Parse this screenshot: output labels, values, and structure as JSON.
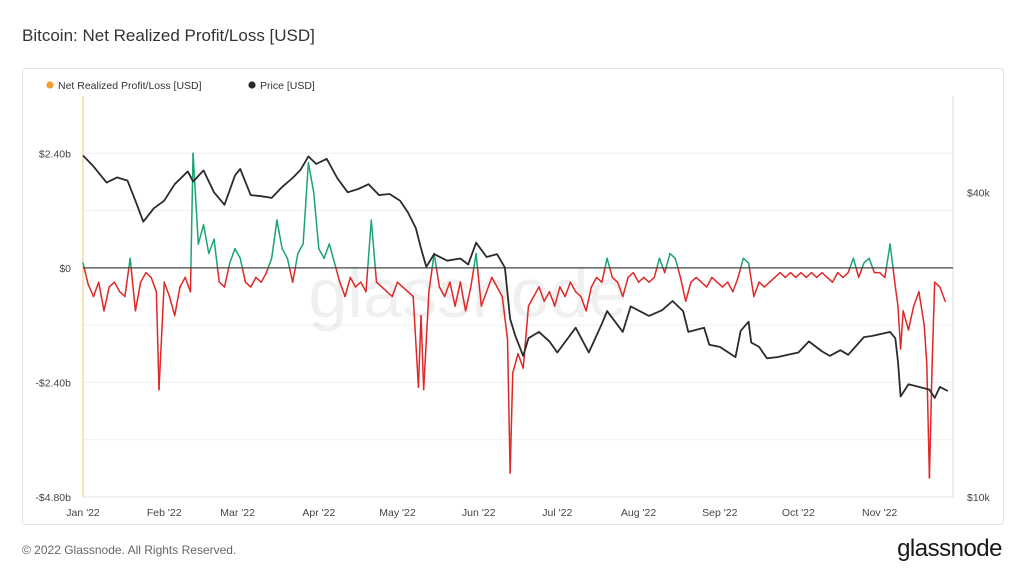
{
  "header": {
    "title": "Bitcoin: Net Realized Profit/Loss [USD]"
  },
  "footer": {
    "copyright": "© 2022 Glassnode. All Rights Reserved.",
    "logo_text": "glassnode"
  },
  "watermark": "glassnode",
  "colors": {
    "profit": "#1aa56f",
    "loss": "#e02727",
    "price": "#2b2b2b",
    "legend_profit_loss": "#f59c32",
    "legend_price": "#2b2b2b",
    "left_axis_line": "#f5c96b",
    "zero_line": "#444444",
    "grid": "#efefef"
  },
  "chart_data": {
    "type": "line",
    "title": "Bitcoin: Net Realized Profit/Loss [USD]",
    "legend": {
      "placement": "top-left",
      "items": [
        {
          "label": "Net Realized Profit/Loss [USD]",
          "color": "#f59c32"
        },
        {
          "label": "Price [USD]",
          "color": "#2b2b2b"
        }
      ]
    },
    "x_axis": {
      "ticks": [
        "Jan '22",
        "Feb '22",
        "Mar '22",
        "Apr '22",
        "May '22",
        "Jun '22",
        "Jul '22",
        "Aug '22",
        "Sep '22",
        "Oct '22",
        "Nov '22"
      ]
    },
    "y_left": {
      "ticks": [
        {
          "label": "$2.40b",
          "value": 2.4
        },
        {
          "label": "$0",
          "value": 0
        },
        {
          "label": "-$2.40b",
          "value": -2.4
        },
        {
          "label": "-$4.80b",
          "value": -4.8
        }
      ],
      "range": [
        -4.8,
        3.6
      ]
    },
    "y_right": {
      "scale": "log",
      "ticks": [
        {
          "label": "$40k",
          "value": 40000
        },
        {
          "label": "$10k",
          "value": 10000
        }
      ],
      "range": [
        10000,
        62000
      ]
    },
    "grid": true,
    "price_series": {
      "name": "Price [USD]",
      "points": [
        [
          "2022-01-01",
          47300
        ],
        [
          "2022-01-05",
          45000
        ],
        [
          "2022-01-10",
          41800
        ],
        [
          "2022-01-14",
          42800
        ],
        [
          "2022-01-18",
          42200
        ],
        [
          "2022-01-21",
          38500
        ],
        [
          "2022-01-24",
          35000
        ],
        [
          "2022-01-28",
          37200
        ],
        [
          "2022-02-01",
          38500
        ],
        [
          "2022-02-05",
          41500
        ],
        [
          "2022-02-10",
          44000
        ],
        [
          "2022-02-12",
          42000
        ],
        [
          "2022-02-16",
          44200
        ],
        [
          "2022-02-20",
          40000
        ],
        [
          "2022-02-24",
          37800
        ],
        [
          "2022-02-28",
          43200
        ],
        [
          "2022-03-02",
          44500
        ],
        [
          "2022-03-06",
          39500
        ],
        [
          "2022-03-10",
          39300
        ],
        [
          "2022-03-14",
          39000
        ],
        [
          "2022-03-18",
          41000
        ],
        [
          "2022-03-22",
          42700
        ],
        [
          "2022-03-25",
          44300
        ],
        [
          "2022-03-28",
          47100
        ],
        [
          "2022-03-31",
          45500
        ],
        [
          "2022-04-04",
          46600
        ],
        [
          "2022-04-08",
          42700
        ],
        [
          "2022-04-12",
          40000
        ],
        [
          "2022-04-16",
          40600
        ],
        [
          "2022-04-20",
          41500
        ],
        [
          "2022-04-24",
          39500
        ],
        [
          "2022-04-28",
          39700
        ],
        [
          "2022-05-02",
          38500
        ],
        [
          "2022-05-05",
          36500
        ],
        [
          "2022-05-08",
          34000
        ],
        [
          "2022-05-10",
          31000
        ],
        [
          "2022-05-12",
          28500
        ],
        [
          "2022-05-15",
          30200
        ],
        [
          "2022-05-20",
          29300
        ],
        [
          "2022-05-25",
          29600
        ],
        [
          "2022-05-28",
          28800
        ],
        [
          "2022-05-31",
          31800
        ],
        [
          "2022-06-04",
          29800
        ],
        [
          "2022-06-08",
          30200
        ],
        [
          "2022-06-11",
          28400
        ],
        [
          "2022-06-13",
          22500
        ],
        [
          "2022-06-15",
          20800
        ],
        [
          "2022-06-18",
          19000
        ],
        [
          "2022-06-20",
          20600
        ],
        [
          "2022-06-24",
          21200
        ],
        [
          "2022-06-28",
          20300
        ],
        [
          "2022-07-01",
          19300
        ],
        [
          "2022-07-08",
          21600
        ],
        [
          "2022-07-13",
          19300
        ],
        [
          "2022-07-18",
          22000
        ],
        [
          "2022-07-20",
          23300
        ],
        [
          "2022-07-26",
          21200
        ],
        [
          "2022-07-29",
          23800
        ],
        [
          "2022-08-05",
          22800
        ],
        [
          "2022-08-10",
          23400
        ],
        [
          "2022-08-14",
          24400
        ],
        [
          "2022-08-18",
          23300
        ],
        [
          "2022-08-20",
          21200
        ],
        [
          "2022-08-26",
          21600
        ],
        [
          "2022-08-28",
          20000
        ],
        [
          "2022-09-01",
          19800
        ],
        [
          "2022-09-07",
          18900
        ],
        [
          "2022-09-09",
          21300
        ],
        [
          "2022-09-12",
          22200
        ],
        [
          "2022-09-13",
          20200
        ],
        [
          "2022-09-16",
          19800
        ],
        [
          "2022-09-19",
          18800
        ],
        [
          "2022-09-23",
          18900
        ],
        [
          "2022-09-27",
          19100
        ],
        [
          "2022-10-01",
          19300
        ],
        [
          "2022-10-05",
          20300
        ],
        [
          "2022-10-10",
          19400
        ],
        [
          "2022-10-13",
          19000
        ],
        [
          "2022-10-17",
          19500
        ],
        [
          "2022-10-20",
          19100
        ],
        [
          "2022-10-26",
          20700
        ],
        [
          "2022-10-29",
          20800
        ],
        [
          "2022-11-05",
          21200
        ],
        [
          "2022-11-07",
          20600
        ],
        [
          "2022-11-08",
          18500
        ],
        [
          "2022-11-09",
          15800
        ],
        [
          "2022-11-12",
          16700
        ],
        [
          "2022-11-16",
          16500
        ],
        [
          "2022-11-20",
          16300
        ],
        [
          "2022-11-22",
          15700
        ],
        [
          "2022-11-24",
          16500
        ],
        [
          "2022-11-27",
          16200
        ]
      ]
    },
    "npl_series": {
      "name": "Net Realized Profit/Loss [USD]",
      "unit": "billion USD",
      "points": [
        [
          "2022-01-01",
          0.1
        ],
        [
          "2022-01-03",
          -0.35
        ],
        [
          "2022-01-05",
          -0.6
        ],
        [
          "2022-01-07",
          -0.3
        ],
        [
          "2022-01-09",
          -0.9
        ],
        [
          "2022-01-11",
          -0.4
        ],
        [
          "2022-01-13",
          -0.3
        ],
        [
          "2022-01-15",
          -0.5
        ],
        [
          "2022-01-17",
          -0.6
        ],
        [
          "2022-01-19",
          0.2
        ],
        [
          "2022-01-21",
          -0.9
        ],
        [
          "2022-01-23",
          -0.3
        ],
        [
          "2022-01-25",
          -0.1
        ],
        [
          "2022-01-27",
          -0.2
        ],
        [
          "2022-01-29",
          -0.5
        ],
        [
          "2022-01-30",
          -2.55
        ],
        [
          "2022-02-01",
          -0.3
        ],
        [
          "2022-02-03",
          -0.6
        ],
        [
          "2022-02-05",
          -1.0
        ],
        [
          "2022-02-07",
          -0.4
        ],
        [
          "2022-02-09",
          -0.2
        ],
        [
          "2022-02-11",
          -0.5
        ],
        [
          "2022-02-12",
          2.4
        ],
        [
          "2022-02-14",
          0.5
        ],
        [
          "2022-02-16",
          0.9
        ],
        [
          "2022-02-18",
          0.3
        ],
        [
          "2022-02-20",
          0.6
        ],
        [
          "2022-02-22",
          -0.3
        ],
        [
          "2022-02-24",
          -0.4
        ],
        [
          "2022-02-26",
          0.1
        ],
        [
          "2022-02-28",
          0.4
        ],
        [
          "2022-03-02",
          0.2
        ],
        [
          "2022-03-04",
          -0.3
        ],
        [
          "2022-03-06",
          -0.4
        ],
        [
          "2022-03-08",
          -0.2
        ],
        [
          "2022-03-10",
          -0.3
        ],
        [
          "2022-03-12",
          -0.1
        ],
        [
          "2022-03-14",
          0.2
        ],
        [
          "2022-03-16",
          1.0
        ],
        [
          "2022-03-18",
          0.4
        ],
        [
          "2022-03-20",
          0.2
        ],
        [
          "2022-03-22",
          -0.3
        ],
        [
          "2022-03-24",
          0.3
        ],
        [
          "2022-03-26",
          0.5
        ],
        [
          "2022-03-28",
          2.2
        ],
        [
          "2022-03-30",
          1.6
        ],
        [
          "2022-04-01",
          0.4
        ],
        [
          "2022-04-03",
          0.2
        ],
        [
          "2022-04-05",
          0.5
        ],
        [
          "2022-04-07",
          0.1
        ],
        [
          "2022-04-09",
          -0.3
        ],
        [
          "2022-04-11",
          -0.6
        ],
        [
          "2022-04-13",
          -0.2
        ],
        [
          "2022-04-15",
          -0.4
        ],
        [
          "2022-04-17",
          -0.3
        ],
        [
          "2022-04-19",
          -0.5
        ],
        [
          "2022-04-21",
          1.0
        ],
        [
          "2022-04-23",
          -0.3
        ],
        [
          "2022-04-25",
          -0.4
        ],
        [
          "2022-04-27",
          -0.5
        ],
        [
          "2022-04-29",
          -0.6
        ],
        [
          "2022-05-01",
          -0.3
        ],
        [
          "2022-05-03",
          -0.4
        ],
        [
          "2022-05-05",
          -0.5
        ],
        [
          "2022-05-07",
          -0.6
        ],
        [
          "2022-05-09",
          -2.5
        ],
        [
          "2022-05-10",
          -1.0
        ],
        [
          "2022-05-11",
          -2.55
        ],
        [
          "2022-05-13",
          -0.5
        ],
        [
          "2022-05-15",
          0.3
        ],
        [
          "2022-05-17",
          -0.4
        ],
        [
          "2022-05-19",
          -0.6
        ],
        [
          "2022-05-21",
          -0.3
        ],
        [
          "2022-05-23",
          -0.8
        ],
        [
          "2022-05-25",
          -0.3
        ],
        [
          "2022-05-27",
          -0.9
        ],
        [
          "2022-05-29",
          -0.4
        ],
        [
          "2022-05-31",
          0.3
        ],
        [
          "2022-06-02",
          -0.8
        ],
        [
          "2022-06-04",
          -0.5
        ],
        [
          "2022-06-06",
          -0.2
        ],
        [
          "2022-06-08",
          -0.4
        ],
        [
          "2022-06-10",
          -0.6
        ],
        [
          "2022-06-12",
          -1.5
        ],
        [
          "2022-06-13",
          -4.3
        ],
        [
          "2022-06-14",
          -2.2
        ],
        [
          "2022-06-16",
          -1.8
        ],
        [
          "2022-06-18",
          -2.1
        ],
        [
          "2022-06-20",
          -0.8
        ],
        [
          "2022-06-22",
          -0.6
        ],
        [
          "2022-06-24",
          -0.4
        ],
        [
          "2022-06-26",
          -0.7
        ],
        [
          "2022-06-28",
          -0.5
        ],
        [
          "2022-06-30",
          -0.8
        ],
        [
          "2022-07-02",
          -0.4
        ],
        [
          "2022-07-04",
          -0.6
        ],
        [
          "2022-07-06",
          -0.3
        ],
        [
          "2022-07-08",
          -0.5
        ],
        [
          "2022-07-10",
          -0.6
        ],
        [
          "2022-07-12",
          -0.9
        ],
        [
          "2022-07-14",
          -0.4
        ],
        [
          "2022-07-16",
          -0.2
        ],
        [
          "2022-07-18",
          -0.3
        ],
        [
          "2022-07-20",
          0.2
        ],
        [
          "2022-07-22",
          -0.2
        ],
        [
          "2022-07-24",
          -0.3
        ],
        [
          "2022-07-26",
          -0.6
        ],
        [
          "2022-07-28",
          -0.2
        ],
        [
          "2022-07-30",
          -0.1
        ],
        [
          "2022-08-01",
          -0.3
        ],
        [
          "2022-08-03",
          -0.2
        ],
        [
          "2022-08-05",
          -0.3
        ],
        [
          "2022-08-07",
          -0.2
        ],
        [
          "2022-08-09",
          0.2
        ],
        [
          "2022-08-11",
          -0.1
        ],
        [
          "2022-08-13",
          0.3
        ],
        [
          "2022-08-15",
          0.2
        ],
        [
          "2022-08-17",
          -0.2
        ],
        [
          "2022-08-19",
          -0.7
        ],
        [
          "2022-08-21",
          -0.3
        ],
        [
          "2022-08-23",
          -0.2
        ],
        [
          "2022-08-25",
          -0.3
        ],
        [
          "2022-08-27",
          -0.4
        ],
        [
          "2022-08-29",
          -0.2
        ],
        [
          "2022-08-31",
          -0.3
        ],
        [
          "2022-09-02",
          -0.4
        ],
        [
          "2022-09-04",
          -0.3
        ],
        [
          "2022-09-06",
          -0.5
        ],
        [
          "2022-09-08",
          -0.2
        ],
        [
          "2022-09-10",
          0.2
        ],
        [
          "2022-09-12",
          0.1
        ],
        [
          "2022-09-14",
          -0.6
        ],
        [
          "2022-09-16",
          -0.3
        ],
        [
          "2022-09-18",
          -0.4
        ],
        [
          "2022-09-20",
          -0.3
        ],
        [
          "2022-09-22",
          -0.2
        ],
        [
          "2022-09-24",
          -0.1
        ],
        [
          "2022-09-26",
          -0.2
        ],
        [
          "2022-09-28",
          -0.1
        ],
        [
          "2022-09-30",
          -0.2
        ],
        [
          "2022-10-02",
          -0.1
        ],
        [
          "2022-10-04",
          -0.2
        ],
        [
          "2022-10-06",
          -0.1
        ],
        [
          "2022-10-08",
          -0.2
        ],
        [
          "2022-10-10",
          -0.1
        ],
        [
          "2022-10-12",
          -0.2
        ],
        [
          "2022-10-14",
          -0.3
        ],
        [
          "2022-10-16",
          -0.1
        ],
        [
          "2022-10-18",
          -0.2
        ],
        [
          "2022-10-20",
          -0.1
        ],
        [
          "2022-10-22",
          0.2
        ],
        [
          "2022-10-24",
          -0.2
        ],
        [
          "2022-10-26",
          0.1
        ],
        [
          "2022-10-28",
          0.2
        ],
        [
          "2022-10-30",
          -0.1
        ],
        [
          "2022-11-01",
          -0.1
        ],
        [
          "2022-11-03",
          -0.2
        ],
        [
          "2022-11-05",
          0.5
        ],
        [
          "2022-11-07",
          -0.4
        ],
        [
          "2022-11-08",
          -0.8
        ],
        [
          "2022-11-09",
          -1.7
        ],
        [
          "2022-11-10",
          -0.9
        ],
        [
          "2022-11-12",
          -1.3
        ],
        [
          "2022-11-14",
          -0.8
        ],
        [
          "2022-11-16",
          -0.5
        ],
        [
          "2022-11-18",
          -1.2
        ],
        [
          "2022-11-19",
          -2.0
        ],
        [
          "2022-11-20",
          -4.4
        ],
        [
          "2022-11-21",
          -2.1
        ],
        [
          "2022-11-22",
          -0.3
        ],
        [
          "2022-11-24",
          -0.4
        ],
        [
          "2022-11-26",
          -0.7
        ]
      ]
    }
  }
}
